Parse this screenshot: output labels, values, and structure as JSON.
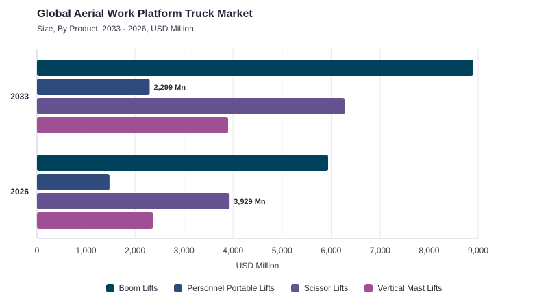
{
  "header": {
    "title": "Global Aerial Work Platform Truck Market",
    "subtitle": "Size, By Product, 2033 - 2026, USD Million"
  },
  "chart_data": {
    "type": "bar",
    "orientation": "horizontal",
    "title": "Global Aerial Work Platform Truck Market",
    "subtitle": "Size, By Product, 2033 - 2026, USD Million",
    "xlabel": "USD Million",
    "ylabel": "",
    "xlim": [
      0,
      9000
    ],
    "x_ticks": [
      0,
      1000,
      2000,
      3000,
      4000,
      5000,
      6000,
      7000,
      8000,
      9000
    ],
    "x_tick_labels": [
      "0",
      "1,000",
      "2,000",
      "3,000",
      "4,000",
      "5,000",
      "6,000",
      "7,000",
      "8,000",
      "9,000"
    ],
    "categories": [
      "2033",
      "2026"
    ],
    "grid": "vertical",
    "legend_position": "bottom",
    "series": [
      {
        "name": "Boom Lifts",
        "color": "#00425c",
        "values": [
          8900,
          5940
        ]
      },
      {
        "name": "Personnel Portable Lifts",
        "color": "#2f4b7c",
        "values": [
          2299,
          1480
        ]
      },
      {
        "name": "Scissor Lifts",
        "color": "#665191",
        "values": [
          6280,
          3929
        ]
      },
      {
        "name": "Vertical Mast Lifts",
        "color": "#a05195",
        "values": [
          3900,
          2370
        ]
      }
    ],
    "annotations": [
      {
        "category": "2033",
        "series": "Personnel Portable Lifts",
        "text": "2,299 Mn"
      },
      {
        "category": "2026",
        "series": "Scissor Lifts",
        "text": "3,929 Mn"
      }
    ]
  }
}
